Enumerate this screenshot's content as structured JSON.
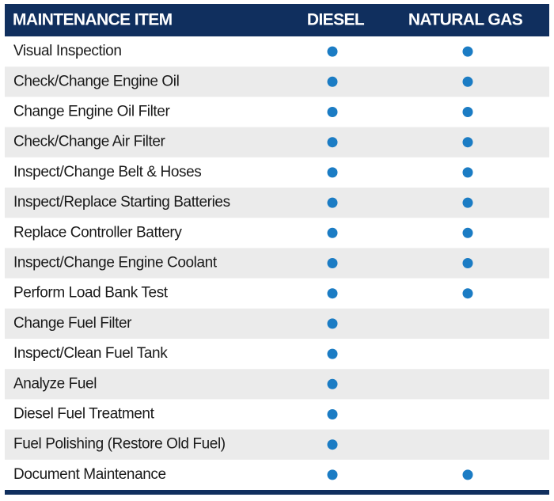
{
  "table": {
    "header": [
      "MAINTENANCE ITEM",
      "DIESEL",
      "NATURAL GAS"
    ],
    "rows": [
      {
        "item": "Visual Inspection",
        "diesel": true,
        "natural_gas": true
      },
      {
        "item": "Check/Change Engine Oil",
        "diesel": true,
        "natural_gas": true
      },
      {
        "item": "Change Engine Oil Filter",
        "diesel": true,
        "natural_gas": true
      },
      {
        "item": "Check/Change Air Filter",
        "diesel": true,
        "natural_gas": true
      },
      {
        "item": "Inspect/Change Belt & Hoses",
        "diesel": true,
        "natural_gas": true
      },
      {
        "item": "Inspect/Replace Starting Batteries",
        "diesel": true,
        "natural_gas": true
      },
      {
        "item": "Replace Controller Battery",
        "diesel": true,
        "natural_gas": true
      },
      {
        "item": "Inspect/Change Engine Coolant",
        "diesel": true,
        "natural_gas": true
      },
      {
        "item": "Perform Load Bank Test",
        "diesel": true,
        "natural_gas": true
      },
      {
        "item": "Change Fuel Filter",
        "diesel": true,
        "natural_gas": false
      },
      {
        "item": "Inspect/Clean Fuel Tank",
        "diesel": true,
        "natural_gas": false
      },
      {
        "item": "Analyze Fuel",
        "diesel": true,
        "natural_gas": false
      },
      {
        "item": "Diesel Fuel Treatment",
        "diesel": true,
        "natural_gas": false
      },
      {
        "item": "Fuel Polishing (Restore Old Fuel)",
        "diesel": true,
        "natural_gas": false
      },
      {
        "item": "Document Maintenance",
        "diesel": true,
        "natural_gas": true
      }
    ]
  }
}
